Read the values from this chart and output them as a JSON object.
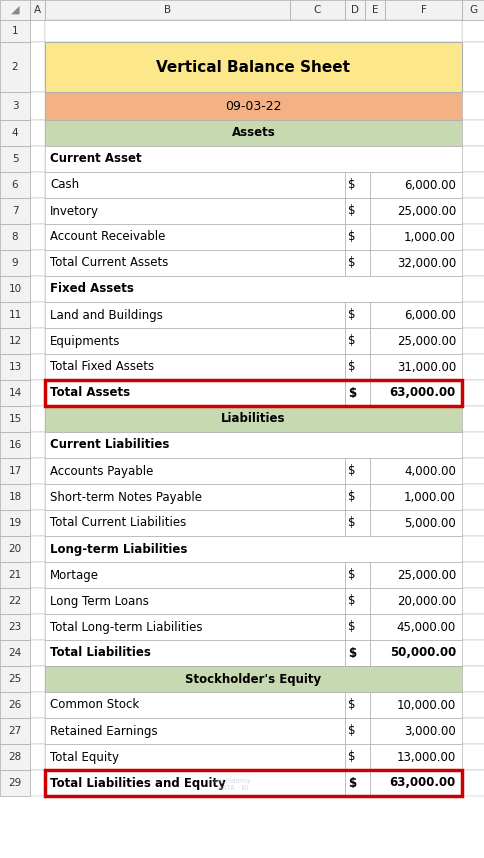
{
  "title": "Vertical Balance Sheet",
  "date": "09-03-22",
  "rows": [
    {
      "row_num": 1,
      "type": "empty"
    },
    {
      "row_num": 2,
      "type": "title"
    },
    {
      "row_num": 3,
      "type": "date"
    },
    {
      "row_num": 4,
      "type": "section_header",
      "label": "Assets"
    },
    {
      "row_num": 5,
      "type": "bold_label",
      "label": "Current Asset"
    },
    {
      "row_num": 6,
      "type": "item",
      "label": "Cash",
      "dollar": "$",
      "value": "6,000.00"
    },
    {
      "row_num": 7,
      "type": "item",
      "label": "Invetory",
      "dollar": "$",
      "value": "25,000.00"
    },
    {
      "row_num": 8,
      "type": "item",
      "label": "Account Receivable",
      "dollar": "$",
      "value": "1,000.00"
    },
    {
      "row_num": 9,
      "type": "item",
      "label": "Total Current Assets",
      "dollar": "$",
      "value": "32,000.00"
    },
    {
      "row_num": 10,
      "type": "bold_label",
      "label": "Fixed Assets"
    },
    {
      "row_num": 11,
      "type": "item",
      "label": "Land and Buildings",
      "dollar": "$",
      "value": "6,000.00"
    },
    {
      "row_num": 12,
      "type": "item",
      "label": "Equipments",
      "dollar": "$",
      "value": "25,000.00"
    },
    {
      "row_num": 13,
      "type": "item",
      "label": "Total Fixed Assets",
      "dollar": "$",
      "value": "31,000.00"
    },
    {
      "row_num": 14,
      "type": "bold_total",
      "label": "Total Assets",
      "dollar": "$",
      "value": "63,000.00",
      "red_border": true
    },
    {
      "row_num": 15,
      "type": "section_header",
      "label": "Liabilities"
    },
    {
      "row_num": 16,
      "type": "bold_label",
      "label": "Current Liabilities"
    },
    {
      "row_num": 17,
      "type": "item",
      "label": "Accounts Payable",
      "dollar": "$",
      "value": "4,000.00"
    },
    {
      "row_num": 18,
      "type": "item",
      "label": "Short-term Notes Payable",
      "dollar": "$",
      "value": "1,000.00"
    },
    {
      "row_num": 19,
      "type": "item",
      "label": "Total Current Liabilities",
      "dollar": "$",
      "value": "5,000.00"
    },
    {
      "row_num": 20,
      "type": "bold_label",
      "label": "Long-term Liabilities"
    },
    {
      "row_num": 21,
      "type": "item",
      "label": "Mortage",
      "dollar": "$",
      "value": "25,000.00"
    },
    {
      "row_num": 22,
      "type": "item",
      "label": "Long Term Loans",
      "dollar": "$",
      "value": "20,000.00"
    },
    {
      "row_num": 23,
      "type": "item",
      "label": "Total Long-term Liabilities",
      "dollar": "$",
      "value": "45,000.00"
    },
    {
      "row_num": 24,
      "type": "bold_total",
      "label": "Total Liabilities",
      "dollar": "$",
      "value": "50,000.00"
    },
    {
      "row_num": 25,
      "type": "section_header",
      "label": "Stockholder's Equity"
    },
    {
      "row_num": 26,
      "type": "item",
      "label": "Common Stock",
      "dollar": "$",
      "value": "10,000.00"
    },
    {
      "row_num": 27,
      "type": "item",
      "label": "Retained Earnings",
      "dollar": "$",
      "value": "3,000.00"
    },
    {
      "row_num": 28,
      "type": "item",
      "label": "Total Equity",
      "dollar": "$",
      "value": "13,000.00"
    },
    {
      "row_num": 29,
      "type": "bold_total",
      "label": "Total Liabilities and Equity",
      "dollar": "$",
      "value": "63,000.00",
      "red_border": true
    }
  ],
  "title_bg": "#fce88a",
  "date_bg": "#f4b183",
  "section_header_bg": "#c6d9b0",
  "white_bg": "#ffffff",
  "grid_color": "#b0b0b0",
  "excel_header_bg": "#f2f2f2",
  "excel_header_border": "#aaaaaa",
  "red_border_color": "#cc0000",
  "fig_bg": "#ffffff"
}
